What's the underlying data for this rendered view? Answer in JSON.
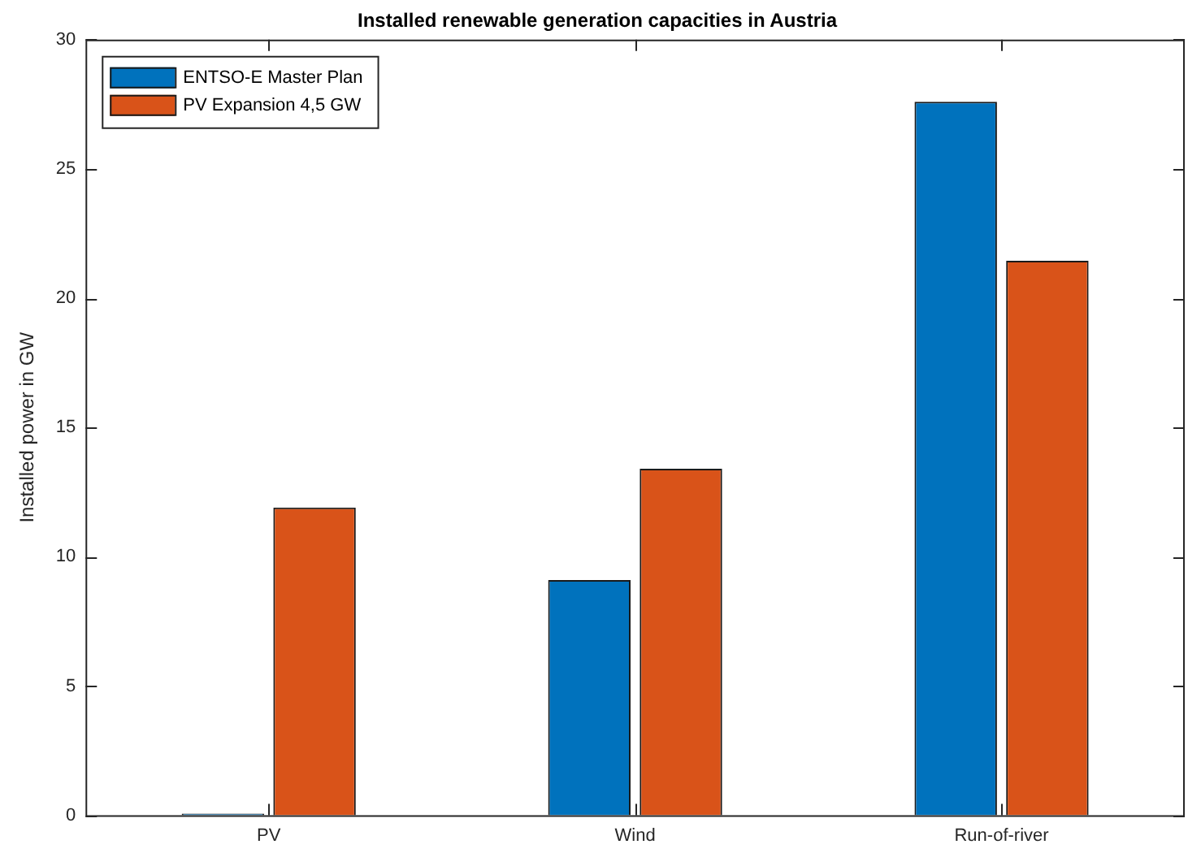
{
  "chart_data": {
    "type": "bar",
    "title": "Installed renewable generation capacities in Austria",
    "ylabel": "Installed power in GW",
    "categories": [
      "PV",
      "Wind",
      "Run-of-river"
    ],
    "series": [
      {
        "name": "ENTSO-E Master Plan",
        "color": "#0072bd",
        "values": [
          0,
          9.1,
          27.6
        ]
      },
      {
        "name": "PV Expansion 4,5 GW",
        "color": "#d95319",
        "values": [
          11.9,
          13.4,
          21.45
        ]
      }
    ],
    "ylim": [
      0,
      30
    ],
    "yticks": [
      0,
      5,
      10,
      15,
      20,
      25,
      30
    ],
    "grid": false,
    "legend": "top left"
  }
}
